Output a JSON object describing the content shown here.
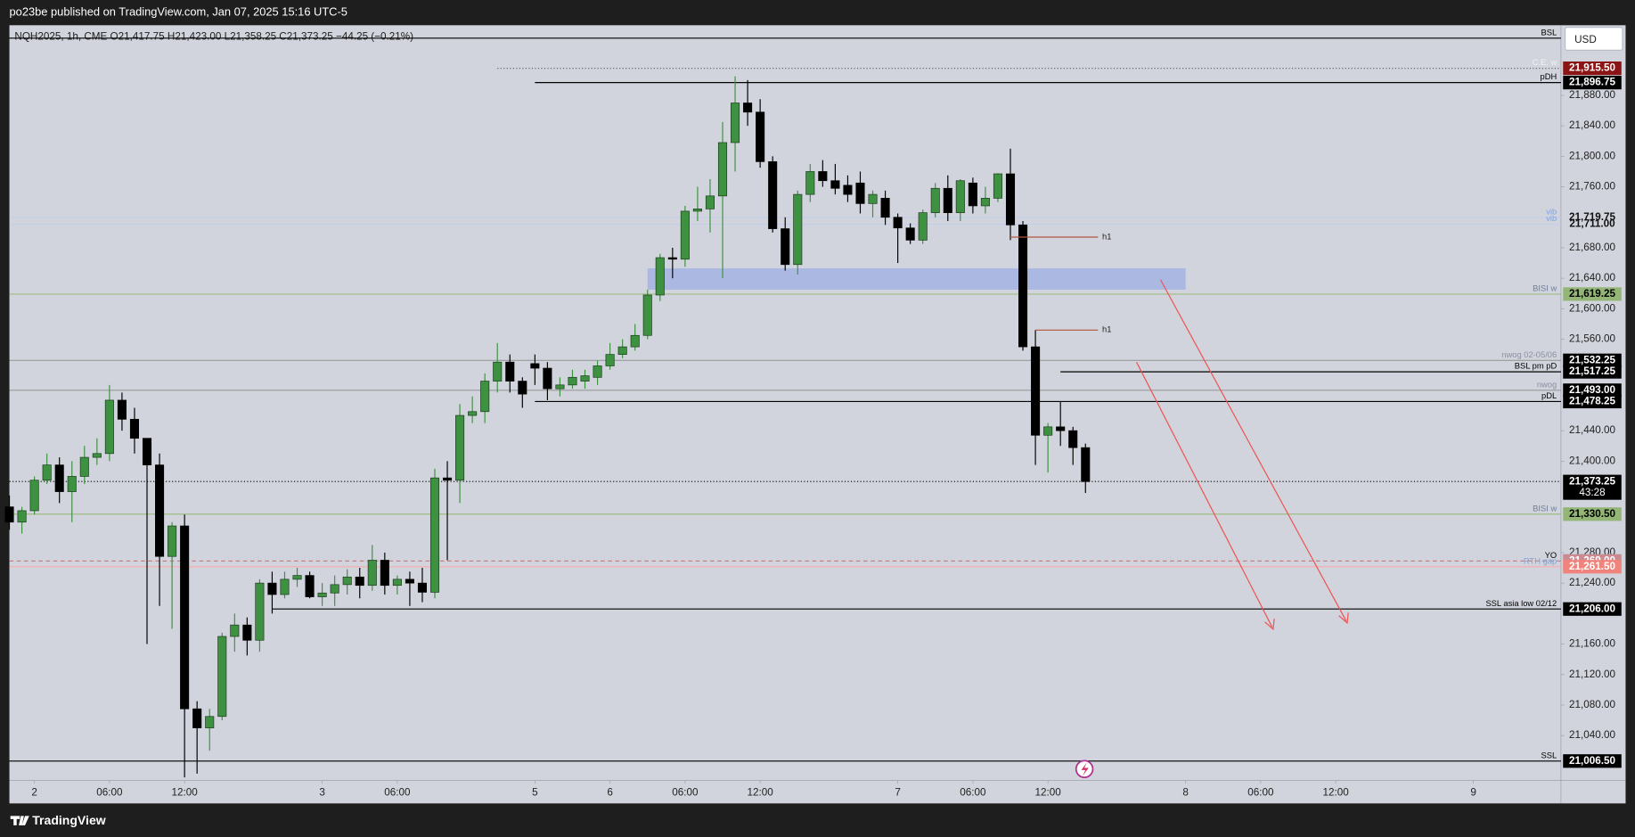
{
  "chart_data": {
    "type": "candlestick",
    "header": "po23be published on TradingView.com, Jan 07, 2025 15:16 UTC-5",
    "legend": "NQH2025, 1h, CME  O21,417.75  H21,423.00  L21,358.25  C21,373.25  −44.25 (−0.21%)",
    "currency": "USD",
    "brand": "TradingView",
    "up_color": "#3f9142",
    "down_color": "#000000",
    "grid": false,
    "xlim": [
      -2,
      122
    ],
    "ylim": [
      20981,
      21972
    ],
    "xticks": [
      {
        "value": 0,
        "label": "2"
      },
      {
        "value": 6,
        "label": "06:00"
      },
      {
        "value": 12,
        "label": "12:00"
      },
      {
        "value": 23,
        "label": "3"
      },
      {
        "value": 29,
        "label": "06:00"
      },
      {
        "value": 40,
        "label": "5"
      },
      {
        "value": 46,
        "label": "6"
      },
      {
        "value": 52,
        "label": "06:00"
      },
      {
        "value": 58,
        "label": "12:00"
      },
      {
        "value": 69,
        "label": "7"
      },
      {
        "value": 75,
        "label": "06:00"
      },
      {
        "value": 81,
        "label": "12:00"
      },
      {
        "value": 92,
        "label": "8"
      },
      {
        "value": 98,
        "label": "06:00"
      },
      {
        "value": 104,
        "label": "12:00"
      },
      {
        "value": 115,
        "label": "9"
      }
    ],
    "yticks": [
      {
        "value": 21880,
        "label": "21,880.00"
      },
      {
        "value": 21840,
        "label": "21,840.00"
      },
      {
        "value": 21800,
        "label": "21,800.00"
      },
      {
        "value": 21760,
        "label": "21,760.00"
      },
      {
        "value": 21680,
        "label": "21,680.00"
      },
      {
        "value": 21640,
        "label": "21,640.00"
      },
      {
        "value": 21600,
        "label": "21,600.00"
      },
      {
        "value": 21560,
        "label": "21,560.00"
      },
      {
        "value": 21440,
        "label": "21,440.00"
      },
      {
        "value": 21400,
        "label": "21,400.00"
      },
      {
        "value": 21280,
        "label": "21,280.00"
      },
      {
        "value": 21240,
        "label": "21,240.00"
      },
      {
        "value": 21160,
        "label": "21,160.00"
      },
      {
        "value": 21120,
        "label": "21,120.00"
      },
      {
        "value": 21080,
        "label": "21,080.00"
      },
      {
        "value": 21040,
        "label": "21,040.00"
      }
    ],
    "x": [
      -2,
      -1,
      0,
      1,
      2,
      3,
      4,
      5,
      6,
      7,
      8,
      9,
      10,
      11,
      12,
      13,
      14,
      15,
      16,
      17,
      18,
      19,
      20,
      21,
      22,
      23,
      24,
      25,
      26,
      27,
      28,
      29,
      30,
      31,
      32,
      33,
      34,
      35,
      36,
      37,
      38,
      39,
      40,
      41,
      42,
      43,
      44,
      45,
      46,
      47,
      48,
      49,
      50,
      51,
      52,
      53,
      54,
      55,
      56,
      57,
      58,
      59,
      60,
      61,
      62,
      63,
      64,
      65,
      66,
      67,
      68,
      69,
      70,
      71,
      72,
      73,
      74,
      75,
      76,
      77,
      78,
      79,
      80,
      81,
      82,
      83,
      84
    ],
    "open": [
      21340,
      21320,
      21335,
      21375,
      21395,
      21360,
      21380,
      21405,
      21410,
      21480,
      21455,
      21430,
      21395,
      21275,
      21315,
      21075,
      21050,
      21065,
      21170,
      21185,
      21165,
      21240,
      21225,
      21245,
      21250,
      21222,
      21227,
      21238,
      21248,
      21237,
      21270,
      21237,
      21245,
      21240,
      21228,
      21378,
      21375,
      21460,
      21465,
      21505,
      21530,
      21505,
      21528,
      21522,
      21495,
      21500,
      21505,
      21510,
      21525,
      21540,
      21550,
      21565,
      21618,
      21667,
      21665,
      21728,
      21731,
      21748,
      21818,
      21870,
      21858,
      21793,
      21705,
      21658,
      21750,
      21780,
      21768,
      21762,
      21765,
      21738,
      21745,
      21720,
      21706,
      21690,
      21726,
      21758,
      21726,
      21765,
      21735,
      21745,
      21777,
      21710,
      21550,
      21434,
      21445,
      21440,
      21417.75
    ],
    "high": [
      21355,
      21340,
      21380,
      21410,
      21405,
      21400,
      21420,
      21430,
      21500,
      21490,
      21470,
      21430,
      21410,
      21320,
      21330,
      21085,
      21075,
      21175,
      21200,
      21195,
      21245,
      21255,
      21255,
      21260,
      21255,
      21240,
      21250,
      21258,
      21260,
      21290,
      21280,
      21250,
      21255,
      21260,
      21390,
      21400,
      21475,
      21485,
      21515,
      21555,
      21540,
      21510,
      21540,
      21530,
      21510,
      21520,
      21520,
      21532,
      21555,
      21560,
      21580,
      21625,
      21672,
      21680,
      21735,
      21760,
      21770,
      21845,
      21905,
      21900,
      21875,
      21800,
      21720,
      21755,
      21790,
      21795,
      21790,
      21775,
      21780,
      21755,
      21755,
      21725,
      21712,
      21730,
      21765,
      21775,
      21770,
      21772,
      21760,
      21778,
      21810,
      21715,
      21572,
      21450,
      21478,
      21445,
      21423
    ],
    "low": [
      21310,
      21305,
      21330,
      21370,
      21345,
      21320,
      21370,
      21395,
      21400,
      21440,
      21410,
      21160,
      21210,
      21180,
      20985,
      20990,
      21020,
      21060,
      21150,
      21145,
      21150,
      21200,
      21220,
      21235,
      21220,
      21210,
      21210,
      21225,
      21220,
      21230,
      21225,
      21225,
      21210,
      21215,
      21220,
      21270,
      21345,
      21450,
      21450,
      21490,
      21490,
      21470,
      21500,
      21480,
      21485,
      21495,
      21495,
      21500,
      21520,
      21535,
      21545,
      21560,
      21610,
      21640,
      21655,
      21715,
      21700,
      21640,
      21780,
      21840,
      21785,
      21700,
      21650,
      21645,
      21740,
      21760,
      21750,
      21740,
      21725,
      21720,
      21710,
      21660,
      21685,
      21685,
      21720,
      21715,
      21715,
      21725,
      21725,
      21740,
      21690,
      21545,
      21395,
      21385,
      21420,
      21395,
      21358.25
    ],
    "close": [
      21320,
      21335,
      21375,
      21395,
      21360,
      21380,
      21405,
      21410,
      21480,
      21455,
      21430,
      21395,
      21275,
      21315,
      21075,
      21050,
      21065,
      21170,
      21185,
      21165,
      21240,
      21225,
      21245,
      21250,
      21222,
      21227,
      21238,
      21248,
      21237,
      21270,
      21237,
      21245,
      21240,
      21228,
      21378,
      21375,
      21460,
      21465,
      21505,
      21530,
      21505,
      21488,
      21522,
      21495,
      21500,
      21510,
      21512,
      21525,
      21540,
      21550,
      21565,
      21618,
      21667,
      21665,
      21728,
      21731,
      21748,
      21818,
      21870,
      21858,
      21793,
      21705,
      21658,
      21750,
      21780,
      21768,
      21758,
      21750,
      21738,
      21750,
      21720,
      21706,
      21690,
      21726,
      21758,
      21726,
      21768,
      21735,
      21745,
      21777,
      21710,
      21550,
      21434,
      21445,
      21440,
      21417.75,
      21373.25
    ],
    "levels": [
      {
        "name": "BSL",
        "value": 21955,
        "color": "#000000",
        "style": "solid",
        "label_color": "#000000"
      },
      {
        "name": "C.E. w",
        "value": 21915.5,
        "value_label": "21,915.50",
        "color": "#666666",
        "style": "dotted",
        "from": 37,
        "label_color": "#f2f2f2",
        "badge": "#8b1414",
        "badge_text": "#ffffff"
      },
      {
        "name": "pDH",
        "value": 21896.75,
        "value_label": "21,896.75",
        "color": "#000000",
        "style": "solid",
        "from": 40,
        "label_color": "#000000",
        "badge": "#000000",
        "badge_text": "#ffffff"
      },
      {
        "name": "vib",
        "value": 21719.75,
        "value_label": "21,719.75",
        "color": "#c3cfe8",
        "style": "solid",
        "label_color": "#7fa2dc",
        "badge_text": "#111111"
      },
      {
        "name": "vib",
        "value": 21711,
        "value_label": "21,711.00",
        "color": "#c3cfe8",
        "style": "solid",
        "label_color": "#7fa2dc",
        "badge_text": "#111111"
      },
      {
        "name": "BISI w",
        "value": 21619.25,
        "value_label": "21,619.25",
        "color": "#9dbd82",
        "style": "solid",
        "label_color": "#6f7d99",
        "badge": "#93b676",
        "badge_text": "#000000"
      },
      {
        "name": "nwog 02-05/06",
        "value": 21532.25,
        "value_label": "21,532.25",
        "color": "#9a9a9a",
        "style": "solid",
        "label_color": "#8a8fa0",
        "badge": "#000000",
        "badge_text": "#ffffff"
      },
      {
        "name": "BSL pm pD",
        "value": 21517.25,
        "value_label": "21,517.25",
        "color": "#000000",
        "style": "solid",
        "from": 82,
        "label_color": "#000000",
        "badge": "#000000",
        "badge_text": "#ffffff"
      },
      {
        "name": "nwog",
        "value": 21493,
        "value_label": "21,493.00",
        "color": "#9a9a9a",
        "style": "solid",
        "label_color": "#8a8fa0",
        "badge": "#000000",
        "badge_text": "#ffffff"
      },
      {
        "name": "pDL",
        "value": 21478.25,
        "value_label": "21,478.25",
        "color": "#000000",
        "style": "solid",
        "from": 40,
        "label_color": "#000000",
        "badge": "#000000",
        "badge_text": "#ffffff"
      },
      {
        "value": 21373.25,
        "value_label": "21,373.25",
        "countdown": "43:28",
        "color": "#000000",
        "style": "dotted",
        "label_color": "#000000",
        "badge": "#000000",
        "badge_text": "#ffffff"
      },
      {
        "name": "BISI w",
        "value": 21330.5,
        "value_label": "21,330.50",
        "color": "#9dbd82",
        "style": "solid",
        "label_color": "#6f7d99",
        "badge": "#93b676",
        "badge_text": "#000000"
      },
      {
        "name": "YO",
        "value": 21269,
        "value_label": "21,269.00",
        "color": "#c98088",
        "style": "dashed",
        "label_color": "#000000",
        "badge": "#c98a92",
        "badge_text": "#ffffff"
      },
      {
        "name": "RTH gap",
        "value": 21261.5,
        "value_label": "21,261.50",
        "color": "#f2b0b0",
        "style": "solid",
        "label_color": "#7fa2dc",
        "badge": "#f0837c",
        "badge_text": "#ffffff"
      },
      {
        "name": "SSL asia low 02/12",
        "value": 21206,
        "value_label": "21,206.00",
        "color": "#000000",
        "style": "solid",
        "from": 19,
        "label_color": "#000000",
        "badge": "#000000",
        "badge_text": "#ffffff"
      },
      {
        "name": "SSL",
        "value": 21006.5,
        "value_label": "21,006.50",
        "color": "#000000",
        "style": "solid",
        "label_color": "#000000",
        "badge": "#000000",
        "badge_text": "#ffffff"
      }
    ],
    "segments": [
      {
        "name": "h1",
        "value": 21694,
        "from": 78,
        "to": 85,
        "color": "#b5533f"
      },
      {
        "name": "h1",
        "value": 21572,
        "from": 80,
        "to": 85,
        "color": "#b5533f"
      }
    ],
    "zones": [
      {
        "low": 21625,
        "high": 21653,
        "from": 49,
        "to": 92,
        "color": "#a6b5e2"
      }
    ]
  }
}
